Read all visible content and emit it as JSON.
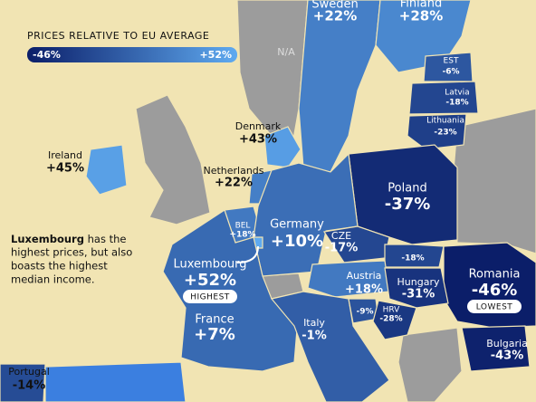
{
  "legend": {
    "title": "PRICES RELATIVE TO EU AVERAGE",
    "min": {
      "value": -46,
      "label": "-46%"
    },
    "max": {
      "value": 52,
      "label": "+52%"
    }
  },
  "na_label": "N/A",
  "annotation": {
    "bold": "Luxembourg",
    "text": [
      "has the",
      "highest prices, but also",
      "boasts the highest",
      "median income."
    ]
  },
  "countries": [
    {
      "name": "Sweden",
      "value": 22,
      "label": "+22%"
    },
    {
      "name": "Finland",
      "value": 28,
      "label": "+28%"
    },
    {
      "name": "EST",
      "value": -6,
      "label": "-6%"
    },
    {
      "name": "Latvia",
      "value": -18,
      "label": "-18%"
    },
    {
      "name": "Lithuania",
      "value": -23,
      "label": "-23%"
    },
    {
      "name": "Denmark",
      "value": 43,
      "label": "+43%"
    },
    {
      "name": "Ireland",
      "value": 45,
      "label": "+45%"
    },
    {
      "name": "Netherlands",
      "value": 22,
      "label": "+22%"
    },
    {
      "name": "Poland",
      "value": -37,
      "label": "-37%"
    },
    {
      "name": "BEL",
      "value": 18,
      "label": "+18%"
    },
    {
      "name": "Germany",
      "value": 10,
      "label": "+10%"
    },
    {
      "name": "CZE",
      "value": -17,
      "label": "-17%"
    },
    {
      "name": null,
      "value": -18,
      "label": "-18%"
    },
    {
      "name": "Luxembourg",
      "value": 52,
      "label": "+52%",
      "badge": "HIGHEST"
    },
    {
      "name": "Romania",
      "value": -46,
      "label": "-46%",
      "badge": "LOWEST"
    },
    {
      "name": "Austria",
      "value": 18,
      "label": "+18%"
    },
    {
      "name": "Hungary",
      "value": -31,
      "label": "-31%"
    },
    {
      "name": "France",
      "value": 7,
      "label": "+7%"
    },
    {
      "name": "Italy",
      "value": -1,
      "label": "-1%"
    },
    {
      "name": null,
      "value": -9,
      "label": "-9%"
    },
    {
      "name": "HRV",
      "value": -28,
      "label": "-28%"
    },
    {
      "name": "Bulgaria",
      "value": -43,
      "label": "-43%"
    },
    {
      "name": "Portugal",
      "value": -14,
      "label": "-14%"
    }
  ]
}
